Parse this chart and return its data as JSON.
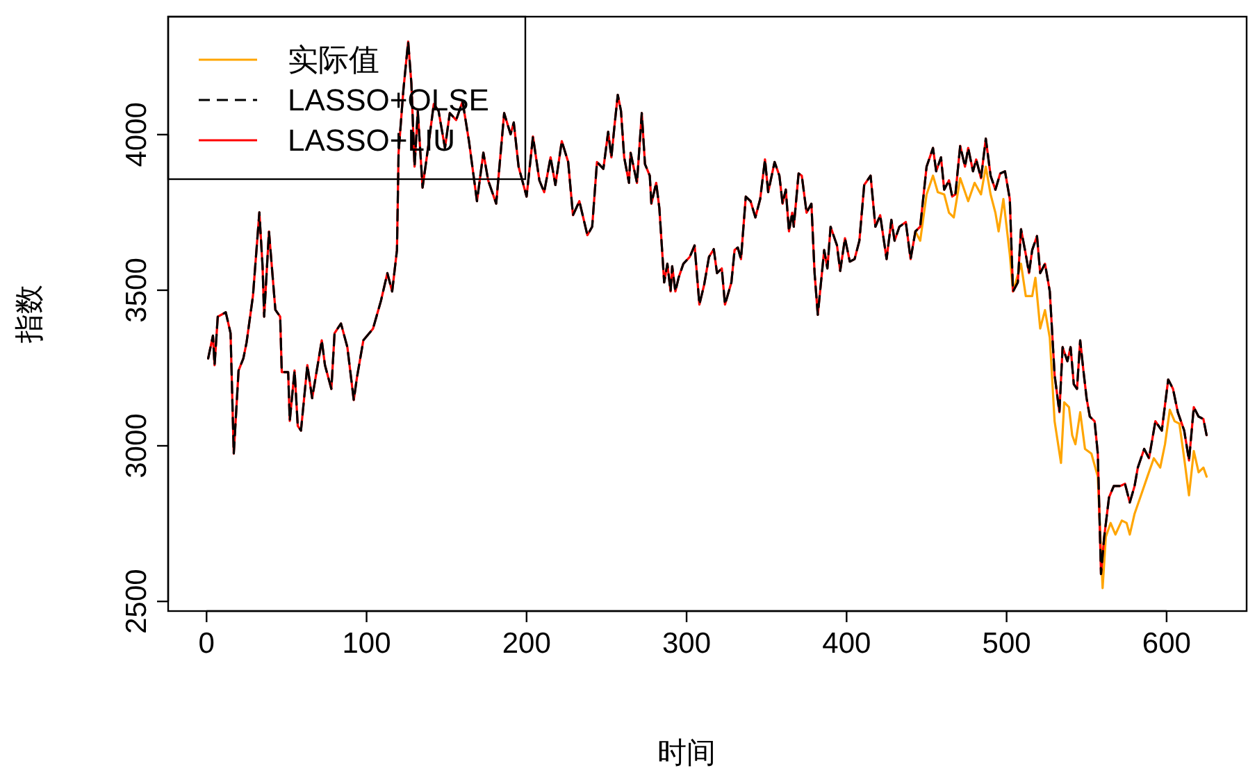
{
  "chart_data": {
    "type": "line",
    "xlabel": "时间",
    "ylabel": "指数",
    "xlim": [
      -24,
      650
    ],
    "ylim": [
      2469,
      4379
    ],
    "xticks": [
      0,
      100,
      200,
      300,
      400,
      500,
      600
    ],
    "yticks": [
      2500,
      3000,
      3500,
      4000
    ],
    "grid": false,
    "legend": "top left",
    "marker": "none",
    "series": [
      {
        "name": "实际值",
        "color": "#ffa500",
        "line_style": "solid",
        "x": [
          443,
          446,
          450,
          454,
          457,
          461,
          464,
          467,
          471,
          476,
          480,
          484,
          487,
          490,
          493,
          495,
          498,
          502,
          504,
          509,
          512,
          516,
          518,
          521,
          524,
          527,
          530,
          534,
          536,
          539,
          541,
          543,
          546,
          549,
          553,
          557,
          560,
          562,
          565,
          568,
          572,
          575,
          577,
          580,
          584,
          588,
          592,
          596,
          599,
          602,
          605,
          608,
          611,
          614,
          617,
          620,
          623,
          625
        ],
        "values": [
          3689,
          3659,
          3808,
          3868,
          3815,
          3808,
          3749,
          3734,
          3860,
          3786,
          3845,
          3808,
          3897,
          3808,
          3749,
          3689,
          3793,
          3615,
          3496,
          3585,
          3481,
          3481,
          3540,
          3377,
          3436,
          3347,
          3079,
          2945,
          3140,
          3124,
          3034,
          3005,
          3108,
          2990,
          2975,
          2901,
          2543,
          2707,
          2752,
          2715,
          2760,
          2752,
          2715,
          2782,
          2841,
          2901,
          2960,
          2930,
          3005,
          3116,
          3079,
          3071,
          2960,
          2841,
          2983,
          2915,
          2930,
          2901
        ]
      },
      {
        "name": "LASSO+OLSE",
        "color": "#000000",
        "line_style": "dashed",
        "x": [
          1,
          4,
          5,
          7,
          12,
          15,
          17,
          20,
          23,
          25,
          29,
          33,
          35,
          36,
          39,
          43,
          46,
          47,
          51,
          52,
          55,
          57,
          59,
          63,
          66,
          72,
          74,
          78,
          80,
          84,
          88,
          92,
          94,
          98,
          104,
          109,
          113,
          116,
          119,
          120,
          123,
          126,
          128,
          130,
          132,
          135,
          139,
          142,
          145,
          149,
          152,
          156,
          160,
          164,
          169,
          173,
          176,
          181,
          186,
          190,
          192,
          195,
          200,
          204,
          208,
          211,
          215,
          218,
          222,
          226,
          229,
          233,
          238,
          241,
          244,
          248,
          251,
          253,
          255,
          257,
          259,
          261,
          264,
          265,
          269,
          272,
          274,
          277,
          278,
          281,
          283,
          286,
          288,
          290,
          291,
          293,
          295,
          298,
          302,
          305,
          308,
          311,
          314,
          317,
          319,
          322,
          324,
          328,
          330,
          332,
          334,
          337,
          340,
          343,
          346,
          349,
          351,
          355,
          358,
          360,
          362,
          364,
          366,
          367,
          370,
          372,
          375,
          378,
          380,
          382,
          386,
          388,
          390,
          394,
          396,
          399,
          402,
          405,
          408,
          411,
          415,
          418,
          421,
          425,
          428,
          430,
          433,
          437,
          440,
          443,
          446,
          450,
          454,
          456,
          459,
          461,
          464,
          466,
          468,
          471,
          474,
          476,
          479,
          481,
          484,
          487,
          490,
          493,
          496,
          499,
          502,
          504,
          507,
          509,
          512,
          514,
          516,
          519,
          521,
          524,
          527,
          530,
          533,
          535,
          538,
          540,
          542,
          544,
          546,
          548,
          550,
          552,
          555,
          557,
          559,
          561,
          564,
          567,
          571,
          574,
          577,
          580,
          582,
          586,
          589,
          593,
          597,
          601,
          604,
          607,
          611,
          614,
          617,
          620,
          623,
          625
        ],
        "values": [
          3281,
          3354,
          3259,
          3415,
          3429,
          3362,
          2975,
          3242,
          3281,
          3332,
          3482,
          3750,
          3577,
          3415,
          3689,
          3437,
          3415,
          3237,
          3237,
          3080,
          3242,
          3064,
          3049,
          3259,
          3153,
          3339,
          3259,
          3183,
          3362,
          3393,
          3317,
          3147,
          3220,
          3339,
          3376,
          3466,
          3555,
          3496,
          3629,
          3942,
          4143,
          4299,
          4165,
          3897,
          4076,
          3830,
          3979,
          4098,
          4076,
          3957,
          4069,
          4047,
          4107,
          3979,
          3786,
          3942,
          3853,
          3778,
          4069,
          4001,
          4039,
          3897,
          3801,
          3994,
          3853,
          3815,
          3927,
          3838,
          3979,
          3912,
          3741,
          3786,
          3677,
          3704,
          3912,
          3890,
          4009,
          3927,
          4031,
          4128,
          4076,
          3927,
          3845,
          3942,
          3845,
          4069,
          3905,
          3868,
          3778,
          3845,
          3763,
          3525,
          3585,
          3496,
          3577,
          3496,
          3540,
          3585,
          3607,
          3644,
          3454,
          3518,
          3607,
          3632,
          3555,
          3570,
          3454,
          3525,
          3629,
          3637,
          3600,
          3801,
          3786,
          3734,
          3793,
          3920,
          3815,
          3912,
          3868,
          3778,
          3823,
          3689,
          3749,
          3704,
          3875,
          3868,
          3749,
          3778,
          3555,
          3421,
          3629,
          3570,
          3704,
          3644,
          3562,
          3667,
          3592,
          3600,
          3659,
          3838,
          3868,
          3704,
          3741,
          3600,
          3726,
          3659,
          3704,
          3719,
          3600,
          3689,
          3704,
          3897,
          3957,
          3882,
          3927,
          3823,
          3853,
          3801,
          3808,
          3964,
          3897,
          3957,
          3882,
          3920,
          3860,
          3987,
          3868,
          3823,
          3875,
          3882,
          3793,
          3496,
          3525,
          3696,
          3615,
          3555,
          3629,
          3674,
          3555,
          3585,
          3496,
          3228,
          3108,
          3317,
          3272,
          3317,
          3198,
          3183,
          3339,
          3242,
          3153,
          3094,
          3079,
          2975,
          2588,
          2707,
          2834,
          2871,
          2871,
          2878,
          2818,
          2871,
          2930,
          2990,
          2960,
          3079,
          3049,
          3213,
          3183,
          3108,
          3049,
          2953,
          3124,
          3094,
          3086,
          3034
        ]
      },
      {
        "name": "LASSO+LIU",
        "color": "#ff0000",
        "line_style": "solid",
        "x": [
          1,
          4,
          5,
          7,
          12,
          15,
          17,
          20,
          23,
          25,
          29,
          33,
          35,
          36,
          39,
          43,
          46,
          47,
          51,
          52,
          55,
          57,
          59,
          63,
          66,
          72,
          74,
          78,
          80,
          84,
          88,
          92,
          94,
          98,
          104,
          109,
          113,
          116,
          119,
          120,
          123,
          126,
          128,
          130,
          132,
          135,
          139,
          142,
          145,
          149,
          152,
          156,
          160,
          164,
          169,
          173,
          176,
          181,
          186,
          190,
          192,
          195,
          200,
          204,
          208,
          211,
          215,
          218,
          222,
          226,
          229,
          233,
          238,
          241,
          244,
          248,
          251,
          253,
          255,
          257,
          259,
          261,
          264,
          265,
          269,
          272,
          274,
          277,
          278,
          281,
          283,
          286,
          288,
          290,
          291,
          293,
          295,
          298,
          302,
          305,
          308,
          311,
          314,
          317,
          319,
          322,
          324,
          328,
          330,
          332,
          334,
          337,
          340,
          343,
          346,
          349,
          351,
          355,
          358,
          360,
          362,
          364,
          366,
          367,
          370,
          372,
          375,
          378,
          380,
          382,
          386,
          388,
          390,
          394,
          396,
          399,
          402,
          405,
          408,
          411,
          415,
          418,
          421,
          425,
          428,
          430,
          433,
          437,
          440,
          443,
          446,
          450,
          454,
          456,
          459,
          461,
          464,
          466,
          468,
          471,
          474,
          476,
          479,
          481,
          484,
          487,
          490,
          493,
          496,
          499,
          502,
          504,
          507,
          509,
          512,
          514,
          516,
          519,
          521,
          524,
          527,
          530,
          533,
          535,
          538,
          540,
          542,
          544,
          546,
          548,
          550,
          552,
          555,
          557,
          559,
          561,
          564,
          567,
          571,
          574,
          577,
          580,
          582,
          586,
          589,
          593,
          597,
          601,
          604,
          607,
          611,
          614,
          617,
          620,
          623,
          625
        ],
        "values": [
          3281,
          3354,
          3259,
          3415,
          3429,
          3362,
          2975,
          3242,
          3281,
          3332,
          3482,
          3750,
          3577,
          3415,
          3689,
          3437,
          3415,
          3237,
          3237,
          3080,
          3242,
          3064,
          3049,
          3259,
          3153,
          3339,
          3259,
          3183,
          3362,
          3393,
          3317,
          3147,
          3220,
          3339,
          3376,
          3466,
          3555,
          3496,
          3629,
          3942,
          4143,
          4299,
          4165,
          3897,
          4076,
          3830,
          3979,
          4098,
          4076,
          3957,
          4069,
          4047,
          4107,
          3979,
          3786,
          3942,
          3853,
          3778,
          4069,
          4001,
          4039,
          3897,
          3801,
          3994,
          3853,
          3815,
          3927,
          3838,
          3979,
          3912,
          3741,
          3786,
          3677,
          3704,
          3912,
          3890,
          4009,
          3927,
          4031,
          4128,
          4076,
          3927,
          3845,
          3942,
          3845,
          4069,
          3905,
          3868,
          3778,
          3845,
          3763,
          3525,
          3585,
          3496,
          3577,
          3496,
          3540,
          3585,
          3607,
          3644,
          3454,
          3518,
          3607,
          3632,
          3555,
          3570,
          3454,
          3525,
          3629,
          3637,
          3600,
          3801,
          3786,
          3734,
          3793,
          3920,
          3815,
          3912,
          3868,
          3778,
          3823,
          3689,
          3749,
          3704,
          3875,
          3868,
          3749,
          3778,
          3555,
          3421,
          3629,
          3570,
          3704,
          3644,
          3562,
          3667,
          3592,
          3600,
          3659,
          3838,
          3868,
          3704,
          3741,
          3600,
          3726,
          3659,
          3704,
          3719,
          3600,
          3689,
          3704,
          3897,
          3957,
          3882,
          3927,
          3823,
          3853,
          3801,
          3808,
          3964,
          3897,
          3957,
          3882,
          3920,
          3860,
          3987,
          3868,
          3823,
          3875,
          3882,
          3793,
          3496,
          3525,
          3696,
          3615,
          3555,
          3629,
          3674,
          3555,
          3585,
          3496,
          3228,
          3108,
          3317,
          3272,
          3317,
          3198,
          3183,
          3339,
          3242,
          3153,
          3094,
          3079,
          2975,
          2588,
          2707,
          2834,
          2871,
          2871,
          2878,
          2818,
          2871,
          2930,
          2990,
          2960,
          3079,
          3049,
          3213,
          3183,
          3108,
          3049,
          2953,
          3124,
          3094,
          3086,
          3034
        ]
      }
    ]
  }
}
